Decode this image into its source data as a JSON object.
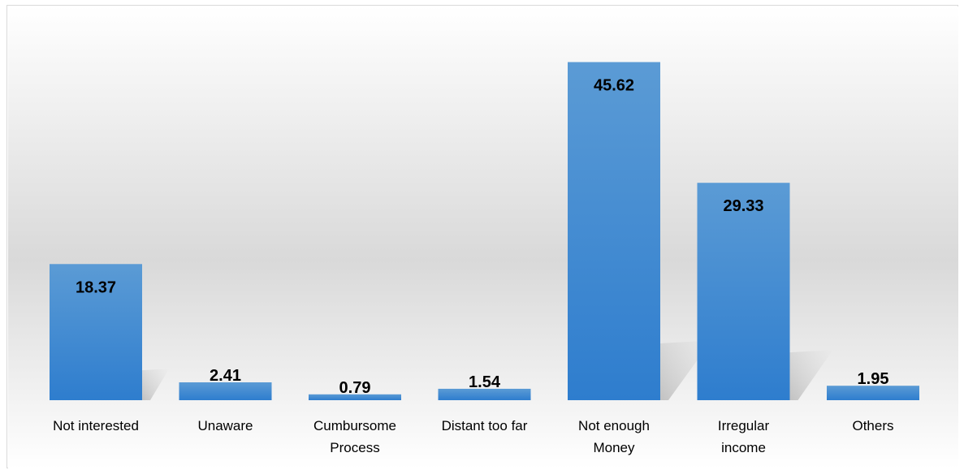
{
  "chart_data": {
    "type": "bar",
    "categories": [
      [
        "Not interested"
      ],
      [
        "Unaware"
      ],
      [
        "Cumbursome",
        "Process"
      ],
      [
        "Distant too far"
      ],
      [
        "Not enough",
        "Money"
      ],
      [
        "Irregular",
        "income"
      ],
      [
        "Others"
      ]
    ],
    "values": [
      18.37,
      2.41,
      0.79,
      1.54,
      45.62,
      29.33,
      1.95
    ],
    "data_labels": [
      "18.37",
      "2.41",
      "0.79",
      "1.54",
      "45.62",
      "29.33",
      "1.95"
    ],
    "ylim": [
      0,
      50
    ],
    "grid": false,
    "legend": "none",
    "colors": {
      "bar_top": "#5b9bd5",
      "bar_bottom": "#2e7dce",
      "background_mid": "#d9d9d9",
      "frame_border": "#d9d9d9"
    }
  }
}
